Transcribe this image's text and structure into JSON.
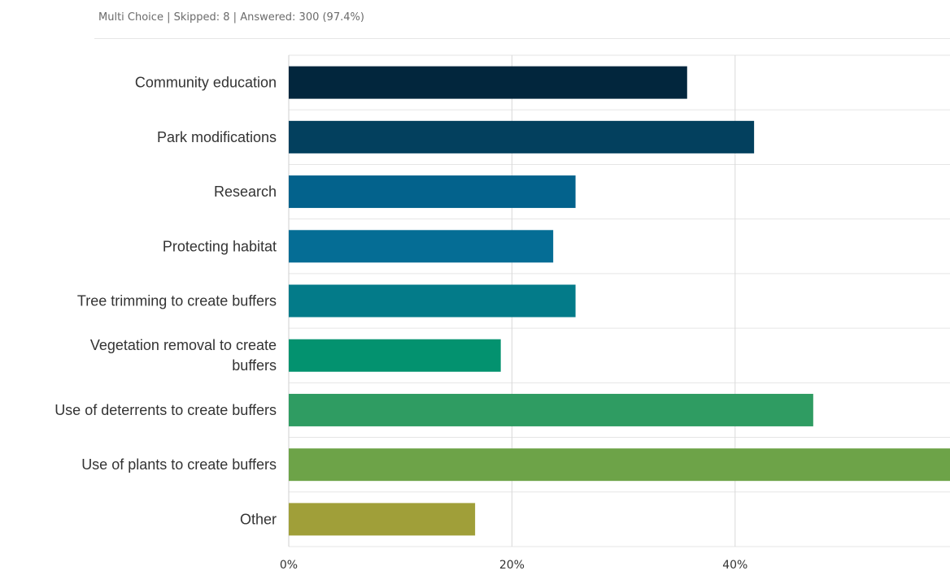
{
  "header": {
    "question_type": "Multi Choice",
    "skipped": "Skipped: 8",
    "answered": "Answered: 300 (97.4%)",
    "separator": " | "
  },
  "chart_data": {
    "type": "bar",
    "orientation": "horizontal",
    "title": "",
    "xlabel": "",
    "ylabel": "",
    "categories": [
      [
        "Community education"
      ],
      [
        "Park modifications"
      ],
      [
        "Research"
      ],
      [
        "Protecting habitat"
      ],
      [
        "Tree trimming to create buffers"
      ],
      [
        "Vegetation removal to create",
        "buffers"
      ],
      [
        "Use of deterrents to create buffers"
      ],
      [
        "Use of plants to create buffers"
      ],
      [
        "Other"
      ]
    ],
    "values": [
      35.7,
      41.7,
      25.7,
      23.7,
      25.7,
      19.0,
      47.0,
      59.3,
      16.7
    ],
    "xlim": [
      0,
      60
    ],
    "x_ticks": [
      0,
      20,
      40
    ],
    "x_tick_labels": [
      "0%",
      "20%",
      "40%"
    ],
    "grid": true,
    "legend": "none",
    "colors": [
      "#02263d",
      "#03405e",
      "#03628c",
      "#056d95",
      "#037b89",
      "#03926f",
      "#2f9c62",
      "#6da348",
      "#a09f39"
    ]
  }
}
